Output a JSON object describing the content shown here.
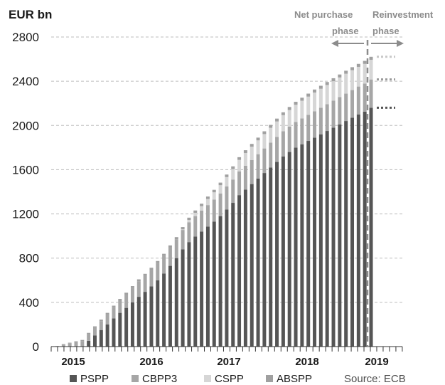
{
  "chart_data": {
    "type": "bar",
    "stacked": true,
    "unit_label": "EUR bn",
    "title": "",
    "xlabel": "",
    "ylabel": "EUR bn",
    "ylim": [
      0,
      2800
    ],
    "yticks": [
      0,
      400,
      800,
      1200,
      1600,
      2000,
      2400,
      2800
    ],
    "year_labels": [
      "2015",
      "2016",
      "2017",
      "2018",
      "2019"
    ],
    "grid": "horizontal dashed",
    "legend_position": "bottom",
    "source": "Source: ECB",
    "phases": {
      "net_purchase": "Net purchase phase",
      "reinvestment": "Reinvestment phase"
    },
    "colors": {
      "PSPP": "#555555",
      "CBPP3": "#a6a6a6",
      "CSPP": "#d6d6d6",
      "ABSPP": "#a0a0a0"
    },
    "categories": [
      "2014-10",
      "2014-11",
      "2014-12",
      "2015-01",
      "2015-02",
      "2015-03",
      "2015-04",
      "2015-05",
      "2015-06",
      "2015-07",
      "2015-08",
      "2015-09",
      "2015-10",
      "2015-11",
      "2015-12",
      "2016-01",
      "2016-02",
      "2016-03",
      "2016-04",
      "2016-05",
      "2016-06",
      "2016-07",
      "2016-08",
      "2016-09",
      "2016-10",
      "2016-11",
      "2016-12",
      "2017-01",
      "2017-02",
      "2017-03",
      "2017-04",
      "2017-05",
      "2017-06",
      "2017-07",
      "2017-08",
      "2017-09",
      "2017-10",
      "2017-11",
      "2017-12",
      "2018-01",
      "2018-02",
      "2018-03",
      "2018-04",
      "2018-05",
      "2018-06",
      "2018-07",
      "2018-08",
      "2018-09",
      "2018-10",
      "2018-11",
      "2018-12"
    ],
    "series": [
      {
        "name": "PSPP",
        "values": [
          0,
          0,
          0,
          0,
          0,
          52,
          100,
          150,
          200,
          255,
          305,
          350,
          400,
          450,
          495,
          545,
          600,
          660,
          730,
          800,
          880,
          945,
          995,
          1040,
          1085,
          1130,
          1180,
          1240,
          1300,
          1370,
          1420,
          1470,
          1520,
          1570,
          1620,
          1670,
          1720,
          1760,
          1800,
          1830,
          1860,
          1890,
          1920,
          1950,
          1980,
          2010,
          2040,
          2070,
          2100,
          2125,
          2160
        ]
      },
      {
        "name": "CBPP3",
        "values": [
          5,
          20,
          30,
          40,
          50,
          60,
          70,
          80,
          90,
          100,
          110,
          120,
          130,
          140,
          145,
          150,
          155,
          160,
          165,
          170,
          175,
          180,
          185,
          190,
          195,
          200,
          205,
          208,
          211,
          214,
          216,
          218,
          220,
          222,
          224,
          226,
          228,
          230,
          232,
          234,
          236,
          238,
          240,
          242,
          244,
          246,
          248,
          250,
          252,
          254,
          256
        ]
      },
      {
        "name": "CSPP",
        "values": [
          0,
          0,
          0,
          0,
          0,
          0,
          0,
          0,
          0,
          0,
          0,
          0,
          0,
          0,
          0,
          0,
          0,
          0,
          0,
          0,
          5,
          20,
          30,
          40,
          55,
          65,
          75,
          85,
          95,
          105,
          115,
          120,
          125,
          130,
          135,
          140,
          145,
          150,
          155,
          160,
          165,
          170,
          172,
          174,
          176,
          178,
          180,
          180,
          178,
          178,
          178
        ]
      },
      {
        "name": "ABSPP",
        "values": [
          0,
          2,
          5,
          8,
          10,
          12,
          13,
          14,
          15,
          15,
          16,
          17,
          17,
          18,
          18,
          18,
          19,
          19,
          20,
          20,
          21,
          21,
          21,
          22,
          22,
          23,
          23,
          23,
          24,
          24,
          25,
          25,
          25,
          25,
          26,
          26,
          26,
          27,
          27,
          27,
          27,
          27,
          27,
          27,
          27,
          27,
          27,
          27,
          27,
          27,
          27
        ]
      }
    ],
    "reinvestment_levels": {
      "PSPP": 2160,
      "PSPP_CBPP3": 2416,
      "total": 2621
    }
  }
}
